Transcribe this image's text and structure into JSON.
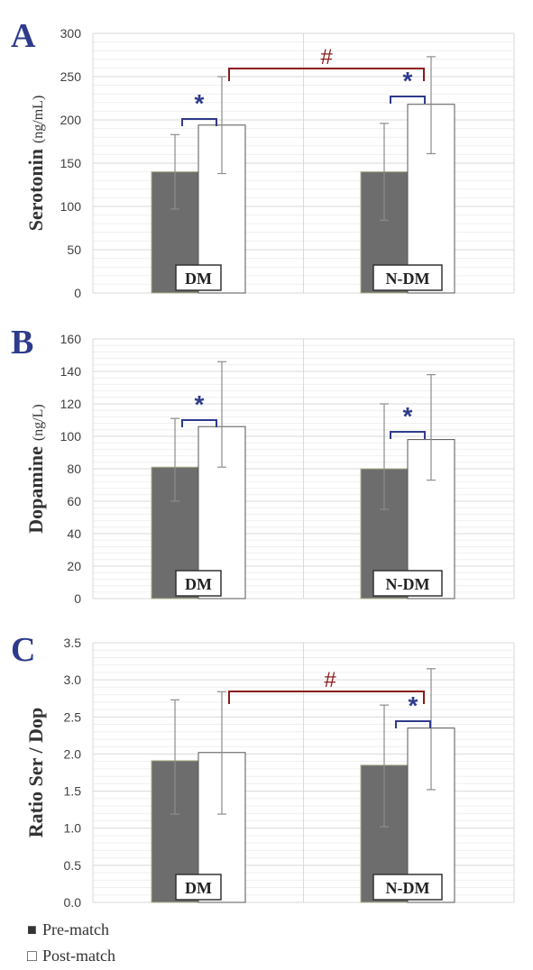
{
  "colors": {
    "pre": "#6d6d6d",
    "post": "#ffffff",
    "post_stroke": "#555555",
    "grid_major": "#d9d9d9",
    "grid_minor": "#efefef",
    "error": "#8c8c8c",
    "star": "#2e3b8c",
    "hash": "#8b1a1a",
    "letter": "#2e3b8c"
  },
  "legend": [
    {
      "marker": "■",
      "label": "Pre-match"
    },
    {
      "marker": "□",
      "label": "Post-match"
    }
  ],
  "chart_data": [
    {
      "panel": "A",
      "type": "bar",
      "ylabel": "Serotonin",
      "yunit": "(ng/mL)",
      "ylim": [
        0,
        300
      ],
      "yticks": [
        "0",
        "50",
        "100",
        "150",
        "200",
        "250",
        "300"
      ],
      "categories": [
        "DM",
        "N-DM"
      ],
      "series": [
        {
          "name": "Pre-match",
          "values": [
            140,
            140
          ],
          "err_low": [
            97,
            84
          ],
          "err_high": [
            183,
            196
          ]
        },
        {
          "name": "Post-match",
          "values": [
            194,
            218
          ],
          "err_low": [
            138,
            161
          ],
          "err_high": [
            250,
            273
          ]
        }
      ],
      "stars": [
        "*",
        "*"
      ],
      "hash": "#",
      "grid": true
    },
    {
      "panel": "B",
      "type": "bar",
      "ylabel": "Dopamine",
      "yunit": "(ng/L)",
      "ylim": [
        0,
        160
      ],
      "yticks": [
        "0",
        "20",
        "40",
        "60",
        "80",
        "100",
        "120",
        "140",
        "160"
      ],
      "categories": [
        "DM",
        "N-DM"
      ],
      "series": [
        {
          "name": "Pre-match",
          "values": [
            81,
            80
          ],
          "err_low": [
            60,
            55
          ],
          "err_high": [
            111,
            120
          ]
        },
        {
          "name": "Post-match",
          "values": [
            106,
            98
          ],
          "err_low": [
            81,
            73
          ],
          "err_high": [
            146,
            138
          ]
        }
      ],
      "stars": [
        "*",
        "*"
      ],
      "hash": "",
      "grid": true
    },
    {
      "panel": "C",
      "type": "bar",
      "ylabel": "Ratio Ser / Dop",
      "yunit": "",
      "ylim": [
        0,
        3.5
      ],
      "yticks": [
        "0.0",
        "0.5",
        "1.0",
        "1.5",
        "2.0",
        "2.5",
        "3.0",
        "3.5"
      ],
      "categories": [
        "DM",
        "N-DM"
      ],
      "series": [
        {
          "name": "Pre-match",
          "values": [
            1.91,
            1.85
          ],
          "err_low": [
            1.19,
            1.02
          ],
          "err_high": [
            2.73,
            2.66
          ]
        },
        {
          "name": "Post-match",
          "values": [
            2.02,
            2.35
          ],
          "err_low": [
            1.19,
            1.52
          ],
          "err_high": [
            2.84,
            3.15
          ]
        }
      ],
      "stars": [
        "",
        "*"
      ],
      "hash": "#",
      "grid": true
    }
  ]
}
